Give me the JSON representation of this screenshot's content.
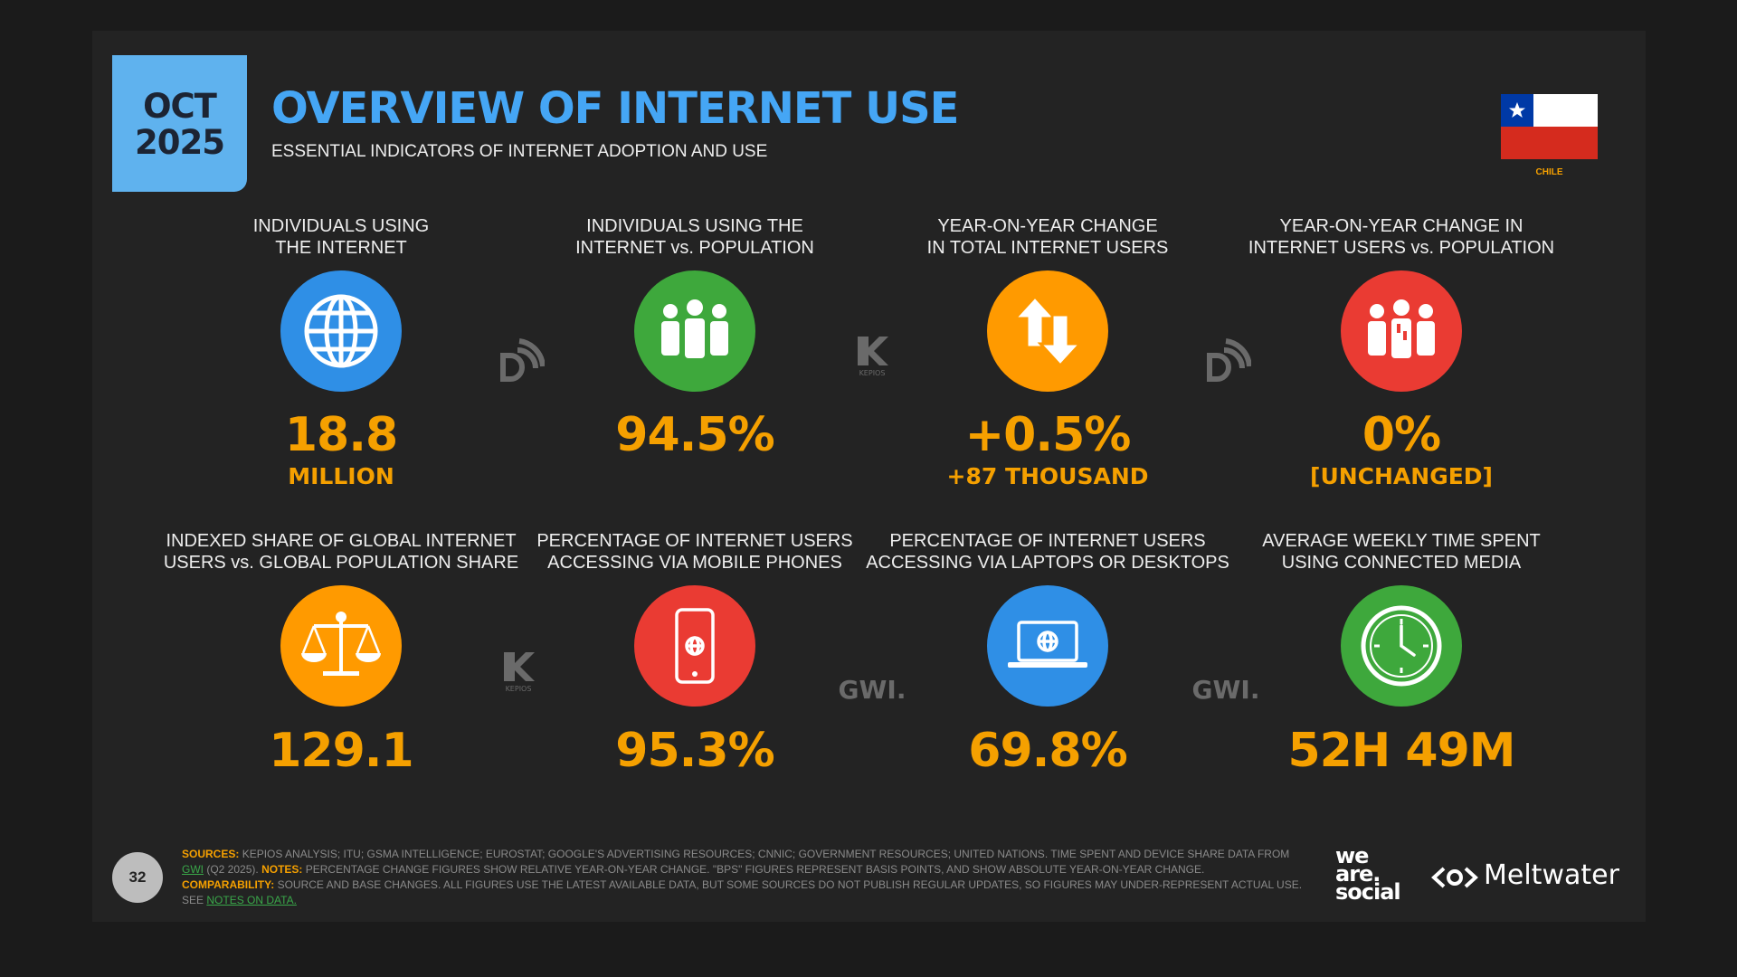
{
  "header": {
    "month": "OCT",
    "year": "2025",
    "title": "OVERVIEW OF INTERNET USE",
    "subtitle": "ESSENTIAL INDICATORS OF INTERNET ADOPTION AND USE",
    "country": "CHILE"
  },
  "indicators": [
    {
      "label": [
        "INDIVIDUALS USING",
        "THE INTERNET"
      ],
      "value": "18.8",
      "sublabel": "MILLION"
    },
    {
      "label": [
        "INDIVIDUALS USING THE",
        "INTERNET vs. POPULATION"
      ],
      "value": "94.5%"
    },
    {
      "label": [
        "YEAR-ON-YEAR CHANGE",
        "IN TOTAL INTERNET USERS"
      ],
      "value": "+0.5%",
      "sublabel": "+87 THOUSAND"
    },
    {
      "label": [
        "YEAR-ON-YEAR CHANGE IN",
        "INTERNET USERS vs. POPULATION"
      ],
      "value": "0%",
      "sublabel": "[UNCHANGED]"
    },
    {
      "label": [
        "INDEXED SHARE OF GLOBAL INTERNET",
        "USERS vs. GLOBAL POPULATION SHARE"
      ],
      "value": "129.1"
    },
    {
      "label": [
        "PERCENTAGE OF INTERNET USERS",
        "ACCESSING VIA MOBILE PHONES"
      ],
      "value": "95.3%"
    },
    {
      "label": [
        "PERCENTAGE OF INTERNET USERS",
        "ACCESSING VIA LAPTOPS OR DESKTOPS"
      ],
      "value": "69.8%"
    },
    {
      "label": [
        "AVERAGE WEEKLY TIME SPENT",
        "USING CONNECTED MEDIA"
      ],
      "value": "52H 49M"
    }
  ],
  "source_marks": {
    "kepios": "KEPIOS",
    "gwi": "GWI."
  },
  "footer": {
    "page": "32",
    "sources_label": "SOURCES:",
    "sources": "KEPIOS ANALYSIS; ITU; GSMA INTELLIGENCE; EUROSTAT; GOOGLE'S ADVERTISING RESOURCES; CNNIC; GOVERNMENT RESOURCES; UNITED NATIONS. TIME SPENT AND DEVICE SHARE DATA FROM",
    "sources_link": "GWI",
    "sources_end": "(Q2 2025).",
    "notes_label": "NOTES:",
    "notes": "PERCENTAGE CHANGE FIGURES SHOW RELATIVE YEAR-ON-YEAR CHANGE. \"BPS\" FIGURES REPRESENT BASIS POINTS, AND SHOW ABSOLUTE YEAR-ON-YEAR CHANGE.",
    "comparability_label": "COMPARABILITY:",
    "comparability": "SOURCE AND BASE CHANGES. ALL FIGURES USE THE LATEST AVAILABLE DATA, BUT SOME SOURCES DO NOT PUBLISH REGULAR UPDATES, SO FIGURES MAY UNDER-REPRESENT ACTUAL USE. SEE",
    "comparability_link": "NOTES ON DATA.",
    "brand1": [
      "we",
      "are.",
      "social"
    ],
    "brand2": "Meltwater"
  }
}
